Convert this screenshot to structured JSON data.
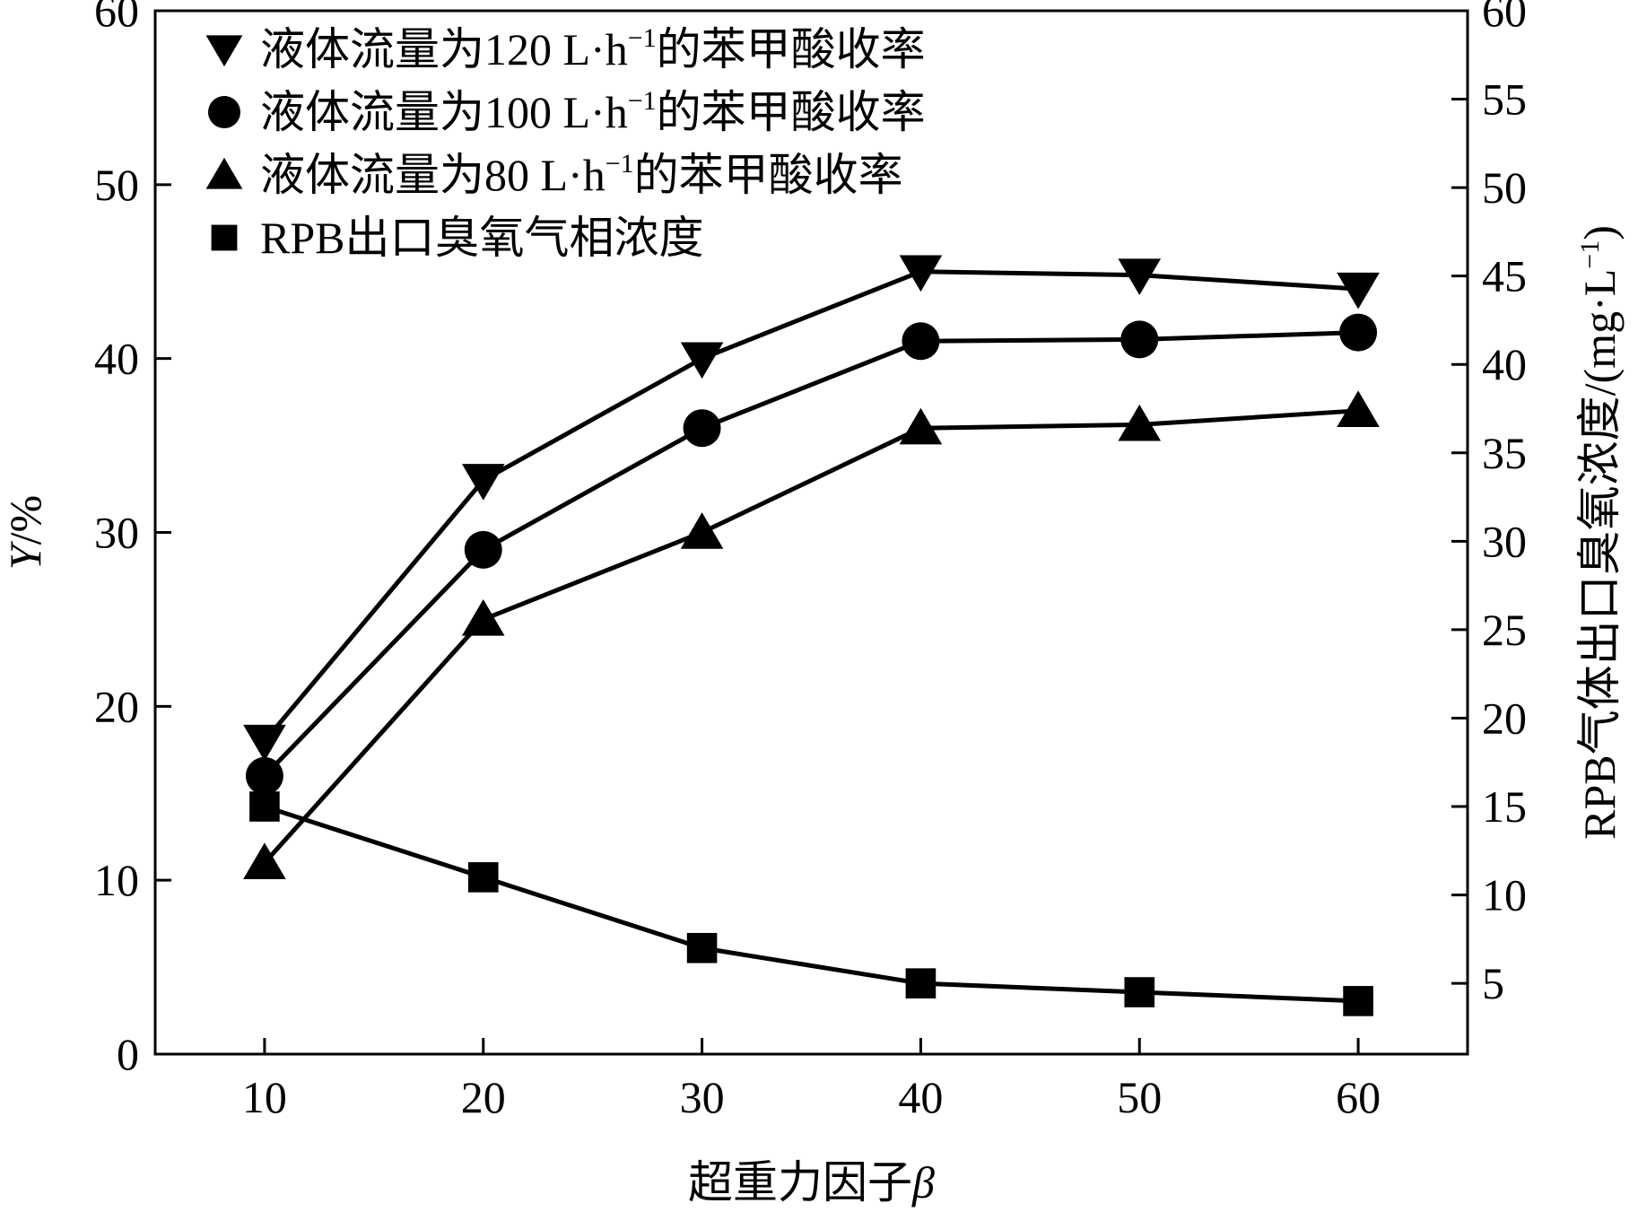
{
  "chart_data": {
    "type": "line",
    "xlabel": "超重力因子",
    "xlabel_symbol": "β",
    "ylabel_left_symbol": "Y",
    "ylabel_left_unit": "/%",
    "ylabel_right_prefix": "RPB气体出口臭氧浓度/(mg·L",
    "ylabel_right_sup": "−1",
    "ylabel_right_suffix": ")",
    "x": [
      10,
      20,
      30,
      40,
      50,
      60
    ],
    "xlim": [
      5,
      65
    ],
    "xticks": [
      "10",
      "20",
      "30",
      "40",
      "50",
      "60"
    ],
    "ylim_left": [
      0,
      60
    ],
    "yticks_left": [
      "0",
      "10",
      "20",
      "30",
      "40",
      "50",
      "60"
    ],
    "ylim_right": [
      1,
      60
    ],
    "yticks_right": [
      "5",
      "10",
      "15",
      "20",
      "25",
      "30",
      "35",
      "40",
      "45",
      "50",
      "55",
      "60"
    ],
    "grid": false,
    "legend_position": "top-left",
    "series": [
      {
        "name_prefix": "液体流量为120 L·h",
        "name_sup": "−1",
        "name_suffix": "的苯甲酸收率",
        "marker": "triangle-down",
        "axis": "left",
        "values": [
          18,
          33,
          40,
          45,
          44.8,
          44
        ]
      },
      {
        "name_prefix": "液体流量为100 L·h",
        "name_sup": "−1",
        "name_suffix": "的苯甲酸收率",
        "marker": "circle",
        "axis": "left",
        "values": [
          16,
          29,
          36,
          41,
          41.1,
          41.5
        ]
      },
      {
        "name_prefix": "液体流量为80 L·h",
        "name_sup": "−1",
        "name_suffix": "的苯甲酸收率",
        "marker": "triangle-up",
        "axis": "left",
        "values": [
          11,
          25,
          30,
          36,
          36.2,
          37
        ]
      },
      {
        "name_prefix": "RPB出口臭氧气相浓度",
        "name_sup": "",
        "name_suffix": "",
        "marker": "square",
        "axis": "right",
        "values": [
          15,
          11,
          7,
          5,
          4.5,
          4
        ]
      }
    ]
  },
  "colors": {
    "line": "#000000",
    "background": "#ffffff"
  }
}
